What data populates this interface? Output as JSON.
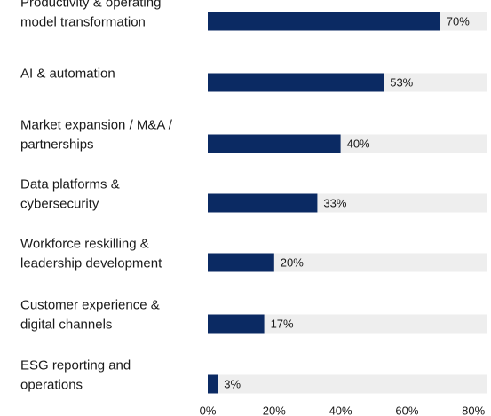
{
  "chart_data": {
    "type": "bar",
    "orientation": "horizontal",
    "categories": [
      [
        "Productivity & operating",
        "model transformation"
      ],
      [
        "AI & automation"
      ],
      [
        "Market expansion / M&A /",
        "partnerships"
      ],
      [
        "Data platforms &",
        "cybersecurity"
      ],
      [
        "Workforce reskilling &",
        "leadership development"
      ],
      [
        "Customer experience &",
        "digital channels"
      ],
      [
        "ESG reporting and",
        "operations"
      ]
    ],
    "values": [
      70,
      53,
      40,
      33,
      20,
      17,
      3
    ],
    "value_labels": [
      "70%",
      "53%",
      "40%",
      "33%",
      "20%",
      "17%",
      "3%"
    ],
    "xlim": [
      0,
      80
    ],
    "x_ticks": [
      0,
      20,
      40,
      60,
      80
    ],
    "x_tick_labels": [
      "0%",
      "20%",
      "40%",
      "60%",
      "80%"
    ],
    "track_max": 84,
    "grid": false,
    "legend": "none",
    "colors": {
      "bar": "#0b2a63",
      "track": "#eeeeee",
      "text": "#1a1a1a"
    }
  }
}
